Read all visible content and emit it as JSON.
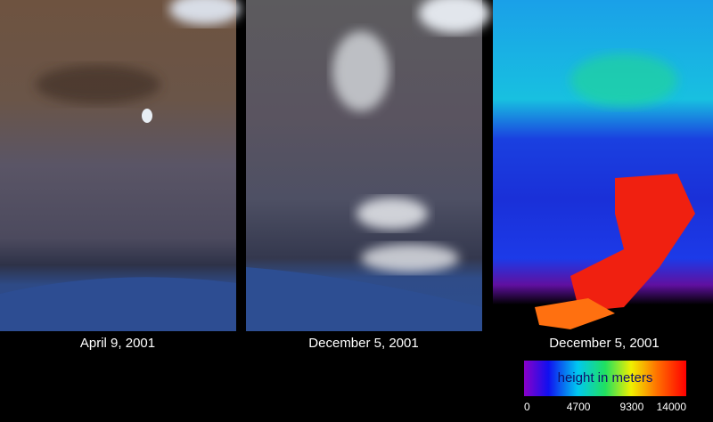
{
  "panels": [
    {
      "caption": "April 9, 2001"
    },
    {
      "caption": "December 5, 2001"
    },
    {
      "caption": "December 5, 2001"
    }
  ],
  "colorbar": {
    "label": "height in meters",
    "ticks": [
      0,
      4700,
      9300,
      14000
    ]
  }
}
